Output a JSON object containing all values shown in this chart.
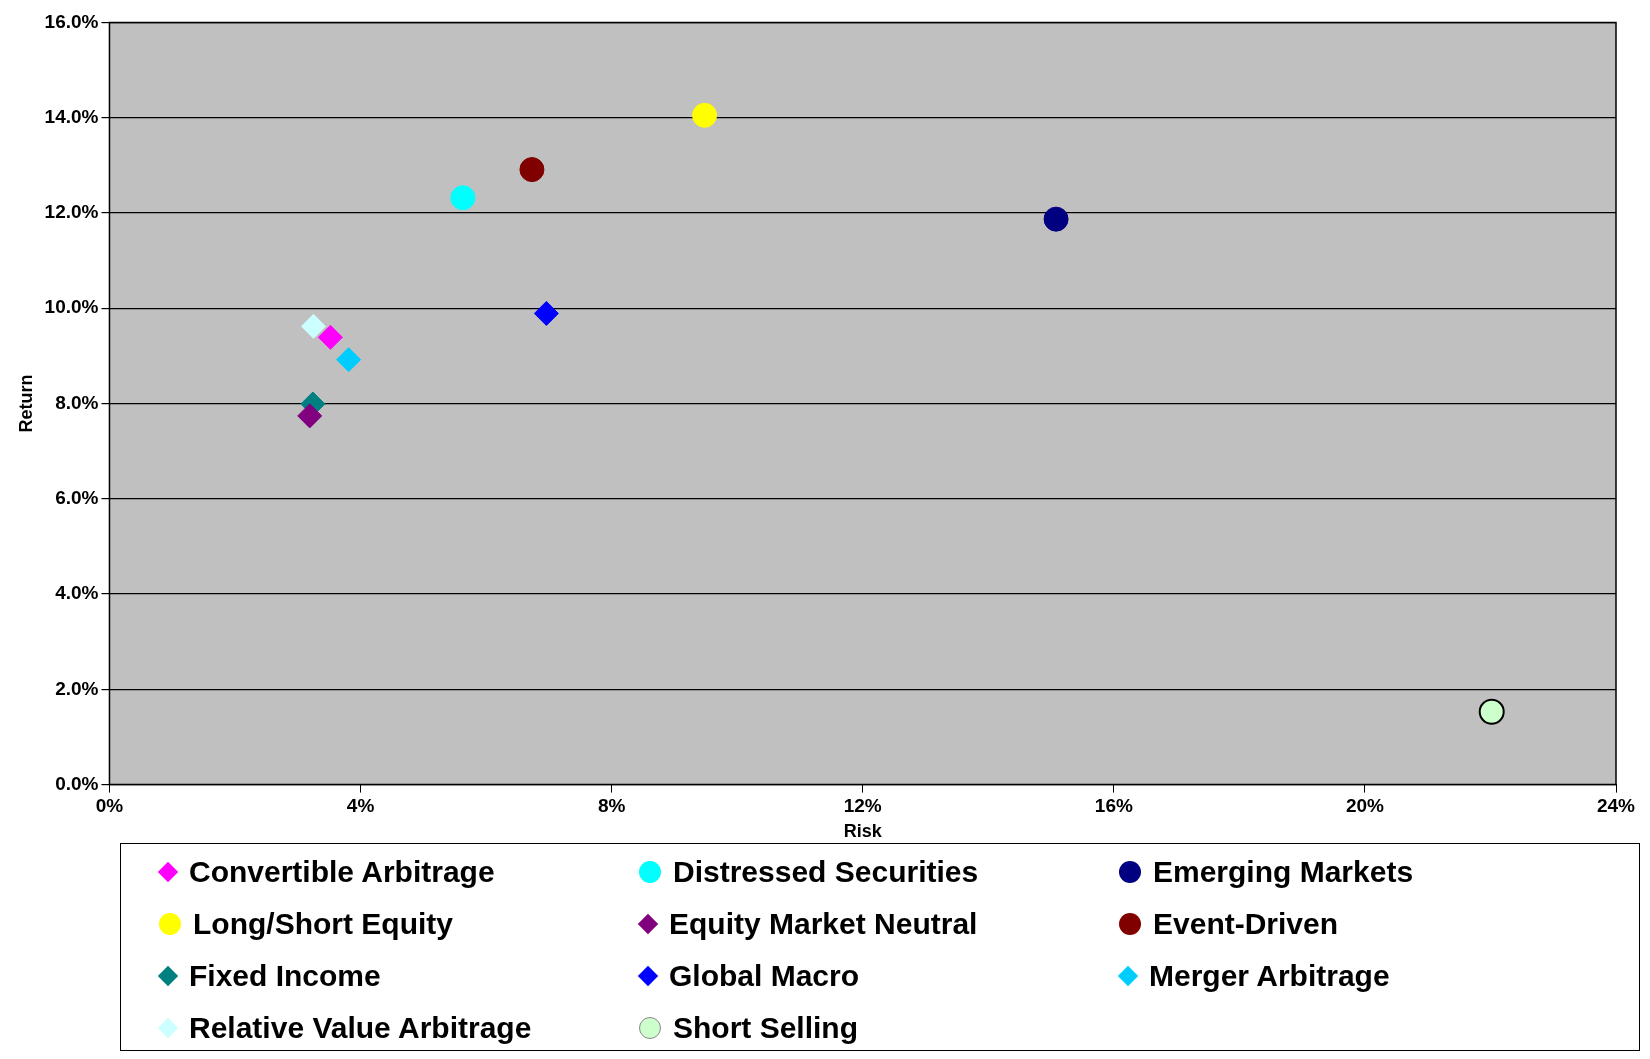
{
  "chart_data": {
    "type": "scatter",
    "xlabel": "Risk",
    "ylabel": "Return",
    "xlim": [
      0,
      24
    ],
    "xticks": [
      {
        "value": 0,
        "label": "0%"
      },
      {
        "value": 4,
        "label": "4%"
      },
      {
        "value": 8,
        "label": "8%"
      },
      {
        "value": 12,
        "label": "12%"
      },
      {
        "value": 16,
        "label": "16%"
      },
      {
        "value": 20,
        "label": "20%"
      },
      {
        "value": 24,
        "label": "24%"
      }
    ],
    "ylim": [
      0,
      16
    ],
    "yticks": [
      {
        "value": 0,
        "label": "0.0%"
      },
      {
        "value": 2,
        "label": "2.0%"
      },
      {
        "value": 4,
        "label": "4.0%"
      },
      {
        "value": 6,
        "label": "6.0%"
      },
      {
        "value": 8,
        "label": "8.0%"
      },
      {
        "value": 10,
        "label": "10.0%"
      },
      {
        "value": 12,
        "label": "12.0%"
      },
      {
        "value": 14,
        "label": "14.0%"
      },
      {
        "value": 16,
        "label": "16.0%"
      }
    ],
    "grid": "y",
    "legend": "bottom",
    "series": [
      {
        "name": "Convertible Arbitrage",
        "color": "#ff00ff",
        "marker": "diamond",
        "x": [
          3.52
        ],
        "values": [
          9.39
        ]
      },
      {
        "name": "Distressed Securities",
        "color": "#00ffff",
        "marker": "circle",
        "x": [
          5.63
        ],
        "values": [
          12.32
        ]
      },
      {
        "name": "Emerging Markets",
        "color": "#000080",
        "marker": "circle",
        "x": [
          15.08
        ],
        "values": [
          11.87
        ]
      },
      {
        "name": "Long/Short Equity",
        "color": "#ffff00",
        "marker": "circle",
        "x": [
          9.48
        ],
        "values": [
          14.05
        ]
      },
      {
        "name": "Equity Market Neutral",
        "color": "#800080",
        "marker": "diamond",
        "x": [
          3.19
        ],
        "values": [
          7.74
        ]
      },
      {
        "name": "Event-Driven",
        "color": "#800000",
        "marker": "circle",
        "x": [
          6.73
        ],
        "values": [
          12.91
        ]
      },
      {
        "name": "Fixed Income",
        "color": "#008080",
        "marker": "diamond",
        "x": [
          3.24
        ],
        "values": [
          7.99
        ]
      },
      {
        "name": "Global Macro",
        "color": "#0000ff",
        "marker": "diamond",
        "x": [
          6.96
        ],
        "values": [
          9.89
        ]
      },
      {
        "name": "Merger Arbitrage",
        "color": "#00ccff",
        "marker": "diamond",
        "x": [
          3.81
        ],
        "values": [
          8.92
        ]
      },
      {
        "name": "Relative Value Arbitrage",
        "color": "#ccffff",
        "marker": "diamond",
        "x": [
          3.25
        ],
        "values": [
          9.62
        ]
      },
      {
        "name": "Short Selling",
        "color": "#ccffcc",
        "marker": "circle",
        "x": [
          22.02
        ],
        "values": [
          1.53
        ]
      }
    ]
  }
}
